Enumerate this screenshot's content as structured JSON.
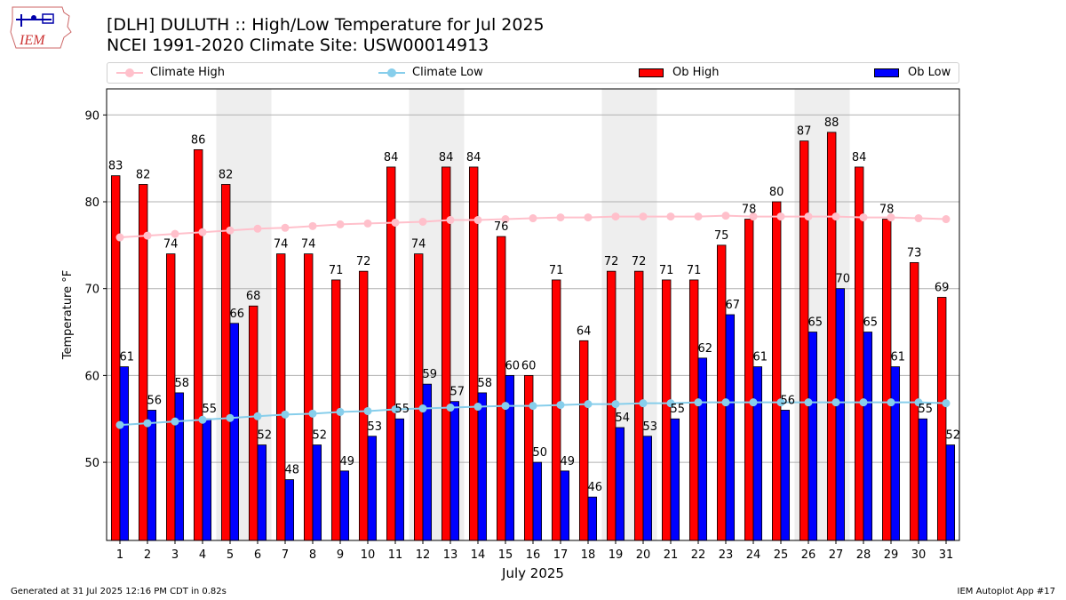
{
  "header": {
    "title_line1": "[DLH] DULUTH :: High/Low Temperature for Jul 2025",
    "title_line2": "NCEI 1991-2020 Climate Site: USW00014913",
    "logo_text": "IEM"
  },
  "footer": {
    "generated": "Generated at 31 Jul 2025 12:16 PM CDT in 0.82s",
    "app": "IEM Autoplot App #17"
  },
  "legend": {
    "climate_high": "Climate High",
    "climate_low": "Climate Low",
    "ob_high": "Ob High",
    "ob_low": "Ob Low"
  },
  "colors": {
    "ob_high": "#ff0000",
    "ob_low": "#0000ff",
    "climate_high": "#ffc0cb",
    "climate_low": "#87ceeb",
    "weekend_shade": "#eeeeee"
  },
  "chart_data": {
    "type": "bar",
    "xlabel": "July 2025",
    "ylabel": "Temperature °F",
    "ylim": [
      41,
      93
    ],
    "yticks": [
      50,
      60,
      70,
      80,
      90
    ],
    "grid": true,
    "legend_position": "top",
    "categories": [
      "1",
      "2",
      "3",
      "4",
      "5",
      "6",
      "7",
      "8",
      "9",
      "10",
      "11",
      "12",
      "13",
      "14",
      "15",
      "16",
      "17",
      "18",
      "19",
      "20",
      "21",
      "22",
      "23",
      "24",
      "25",
      "26",
      "27",
      "28",
      "29",
      "30",
      "31"
    ],
    "shaded_days": [
      [
        5,
        6
      ],
      [
        12,
        13
      ],
      [
        19,
        20
      ],
      [
        26,
        27
      ]
    ],
    "series": [
      {
        "name": "Ob High",
        "kind": "bar",
        "values": [
          83,
          82,
          74,
          86,
          82,
          68,
          74,
          74,
          71,
          72,
          84,
          74,
          84,
          84,
          76,
          60,
          71,
          64,
          72,
          72,
          71,
          71,
          75,
          78,
          80,
          87,
          88,
          84,
          78,
          73,
          69
        ]
      },
      {
        "name": "Ob Low",
        "kind": "bar",
        "values": [
          61,
          56,
          58,
          55,
          66,
          52,
          48,
          52,
          49,
          53,
          55,
          59,
          57,
          58,
          60,
          50,
          49,
          46,
          54,
          53,
          55,
          62,
          67,
          61,
          56,
          65,
          70,
          65,
          61,
          55,
          52
        ]
      },
      {
        "name": "Climate High",
        "kind": "line",
        "values": [
          75.9,
          76.1,
          76.3,
          76.5,
          76.7,
          76.9,
          77.0,
          77.2,
          77.4,
          77.5,
          77.6,
          77.7,
          77.9,
          77.9,
          78.0,
          78.1,
          78.2,
          78.2,
          78.3,
          78.3,
          78.3,
          78.3,
          78.4,
          78.3,
          78.3,
          78.3,
          78.3,
          78.2,
          78.2,
          78.1,
          78.0
        ]
      },
      {
        "name": "Climate Low",
        "kind": "line",
        "values": [
          54.3,
          54.5,
          54.7,
          54.9,
          55.1,
          55.3,
          55.5,
          55.6,
          55.8,
          55.9,
          56.1,
          56.2,
          56.3,
          56.4,
          56.5,
          56.5,
          56.6,
          56.7,
          56.7,
          56.8,
          56.8,
          56.9,
          56.9,
          56.9,
          56.9,
          56.9,
          56.9,
          56.9,
          56.9,
          56.9,
          56.8
        ]
      }
    ]
  }
}
